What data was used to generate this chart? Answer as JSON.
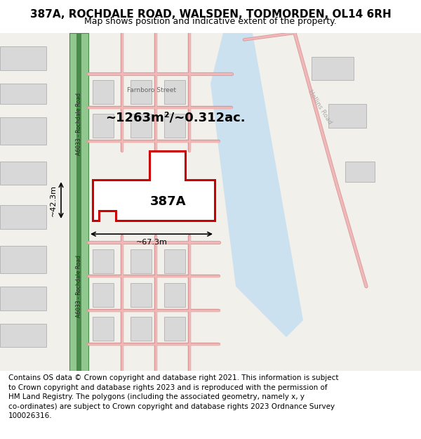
{
  "title": "387A, ROCHDALE ROAD, WALSDEN, TODMORDEN, OL14 6RH",
  "subtitle": "Map shows position and indicative extent of the property.",
  "footer_text": "Contains OS data © Crown copyright and database right 2021. This information is subject\nto Crown copyright and database rights 2023 and is reproduced with the permission of\nHM Land Registry. The polygons (including the associated geometry, namely x, y\nco-ordinates) are subject to Crown copyright and database rights 2023 Ordnance Survey\n100026316.",
  "area_label": "~1263m²/~0.312ac.",
  "property_label": "387A",
  "width_label": "~67.3m",
  "height_label": "~42.3m",
  "road_label": "A6033 - Rochdale Road",
  "street_label": "Farnboro Street",
  "hollins_label": "Hollins Road",
  "map_bg": "#f2f0eb",
  "road_green_color": "#4a8a4a",
  "road_green_light": "#90c890",
  "river_color": "#c5dff0",
  "building_fill": "#d8d8d8",
  "building_stroke": "#b0b0b0",
  "plot_outline_color": "#cc0000",
  "pink_road_color": "#f0b8b8",
  "pink_road_stroke": "#d89898",
  "title_fontsize": 11,
  "subtitle_fontsize": 9,
  "footer_fontsize": 7.5
}
